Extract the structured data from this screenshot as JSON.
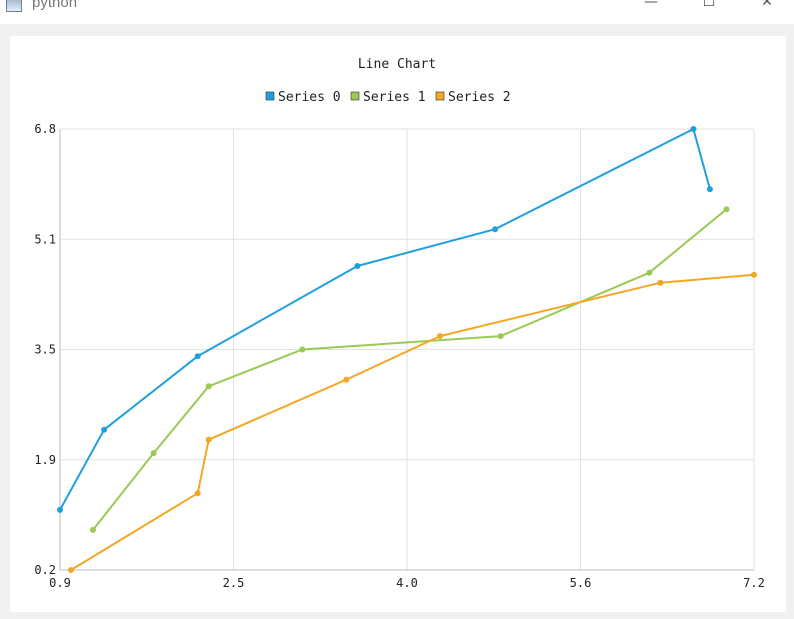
{
  "window": {
    "title": "python",
    "minimize_icon": "minimize-icon",
    "maximize_icon": "maximize-icon",
    "close_icon": "close-icon"
  },
  "chart_data": {
    "type": "line",
    "title": "Line Chart",
    "legend_position": "top",
    "grid": true,
    "xlim": [
      0.9,
      7.2
    ],
    "ylim": [
      0.2,
      6.8
    ],
    "x_ticks": [
      "0.9",
      "2.5",
      "4.0",
      "5.6",
      "7.2"
    ],
    "y_ticks": [
      "6.8",
      "5.1",
      "3.5",
      "1.9",
      "0.2"
    ],
    "x_tick_values": [
      0.9,
      2.475,
      4.05,
      5.625,
      7.2
    ],
    "y_tick_values": [
      6.8,
      5.15,
      3.5,
      1.85,
      0.2
    ],
    "series": [
      {
        "name": "Series 0",
        "color": "#209fdf",
        "points": [
          [
            0.9,
            1.1
          ],
          [
            1.3,
            2.3
          ],
          [
            2.15,
            3.4
          ],
          [
            3.6,
            4.75
          ],
          [
            4.85,
            5.3
          ],
          [
            6.65,
            6.8
          ],
          [
            6.8,
            5.9
          ]
        ]
      },
      {
        "name": "Series 1",
        "color": "#99ca53",
        "points": [
          [
            1.2,
            0.8
          ],
          [
            1.75,
            1.95
          ],
          [
            2.25,
            2.95
          ],
          [
            3.1,
            3.5
          ],
          [
            4.9,
            3.7
          ],
          [
            6.25,
            4.65
          ],
          [
            6.95,
            5.6
          ]
        ]
      },
      {
        "name": "Series 2",
        "color": "#f6a625",
        "points": [
          [
            1.0,
            0.2
          ],
          [
            2.15,
            1.35
          ],
          [
            2.25,
            2.15
          ],
          [
            3.5,
            3.05
          ],
          [
            4.35,
            3.7
          ],
          [
            6.35,
            4.5
          ],
          [
            7.2,
            4.62
          ]
        ]
      }
    ]
  }
}
